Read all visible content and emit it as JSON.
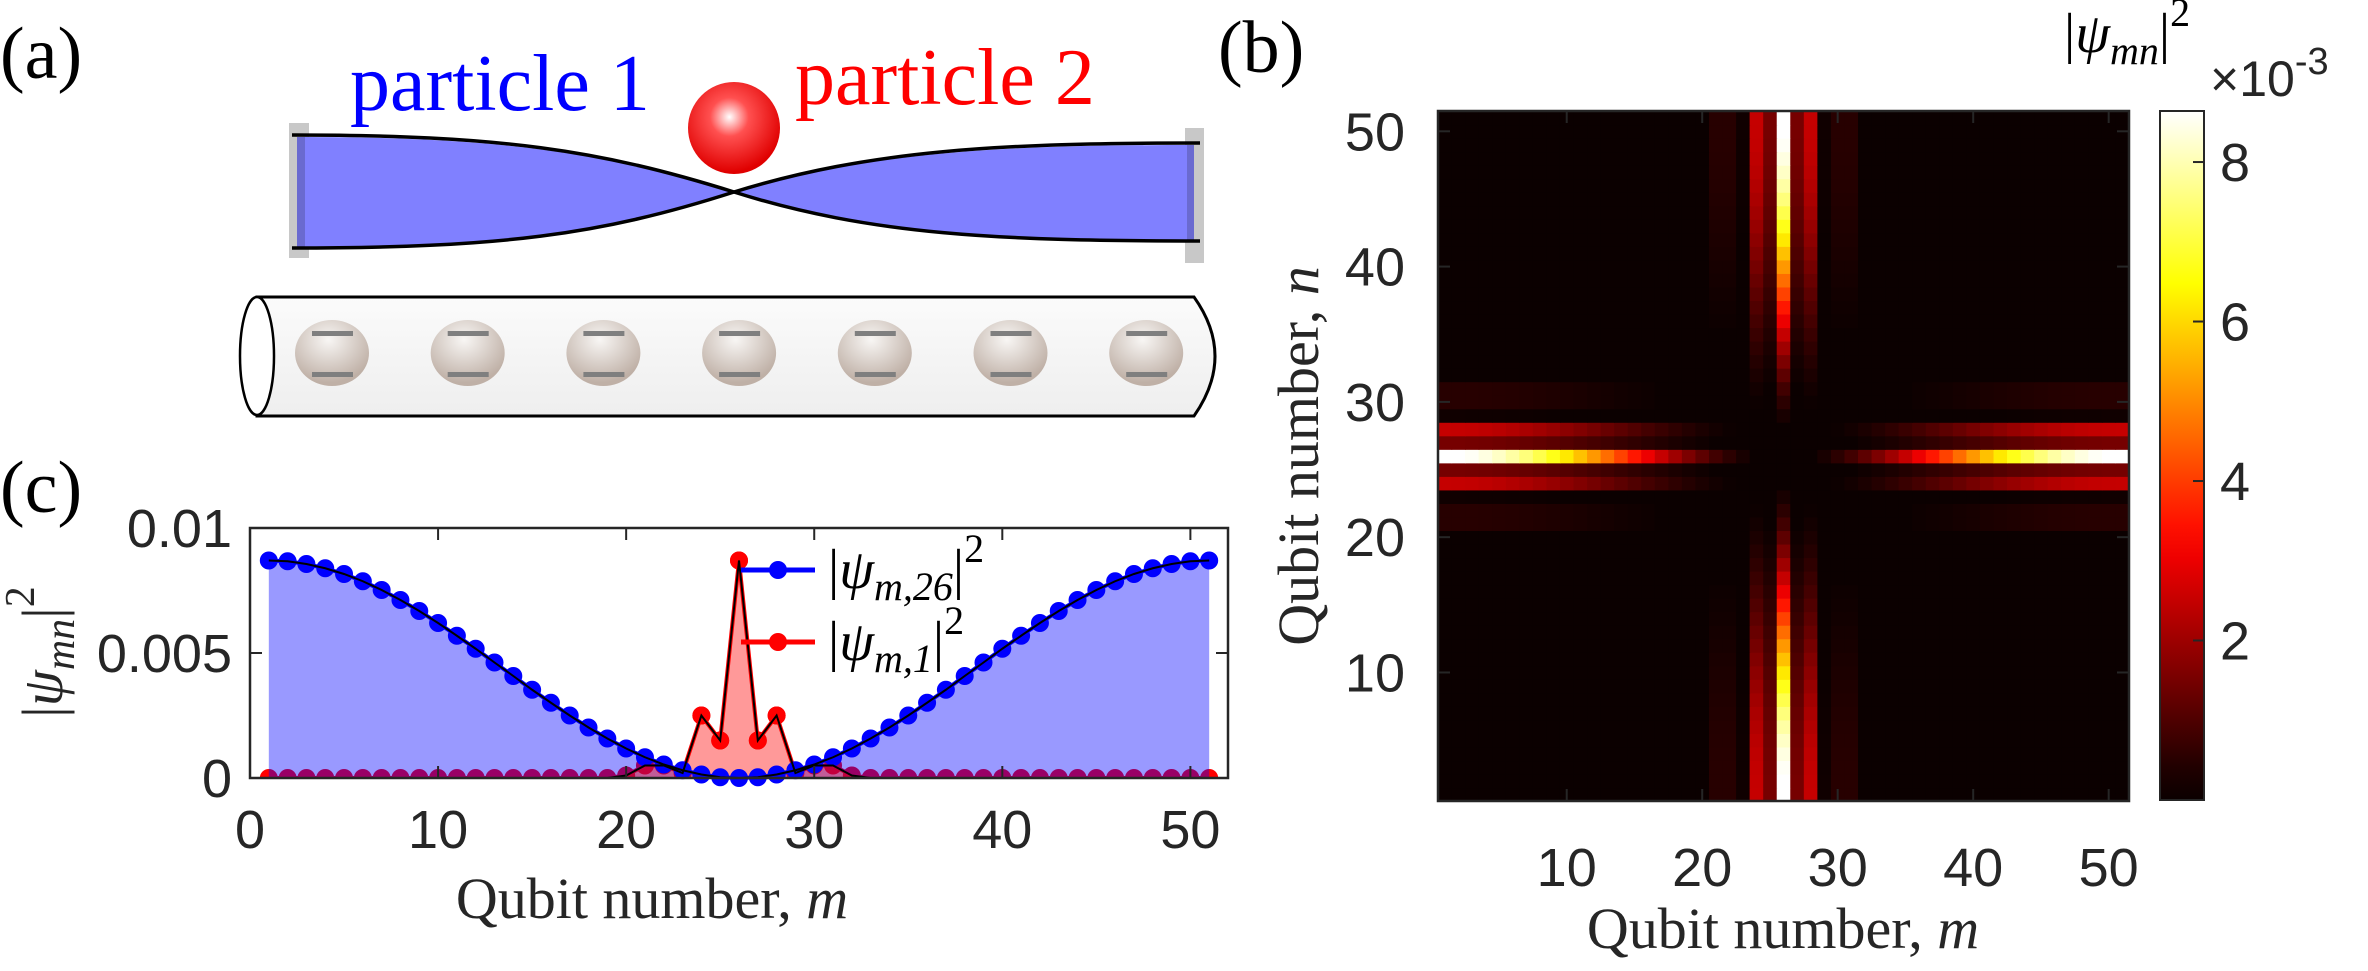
{
  "panels": {
    "a": {
      "label": "(a)",
      "particle1": "particle 1",
      "particle2": "particle 2",
      "particle1_color": "#0000ff",
      "particle2_color": "#ff0000",
      "membrane_color": "#8080ff",
      "qubit_count": 7
    },
    "b": {
      "label": "(b)"
    },
    "c": {
      "label": "(c)"
    }
  },
  "chart_data": [
    {
      "panel": "c",
      "type": "line",
      "x": [
        1,
        2,
        3,
        4,
        5,
        6,
        7,
        8,
        9,
        10,
        11,
        12,
        13,
        14,
        15,
        16,
        17,
        18,
        19,
        20,
        21,
        22,
        23,
        24,
        25,
        26,
        27,
        28,
        29,
        30,
        31,
        32,
        33,
        34,
        35,
        36,
        37,
        38,
        39,
        40,
        41,
        42,
        43,
        44,
        45,
        46,
        47,
        48,
        49,
        50,
        51
      ],
      "series": [
        {
          "color": "#0000ff",
          "fill": "#9999ff",
          "values": [
            0.0087,
            0.00867,
            0.00856,
            0.00839,
            0.00816,
            0.00787,
            0.00752,
            0.00712,
            0.00668,
            0.0062,
            0.00569,
            0.00517,
            0.00462,
            0.00408,
            0.00353,
            0.00301,
            0.0025,
            0.00202,
            0.00158,
            0.00118,
            0.00083,
            0.00054,
            0.00031,
            0.00014,
            3e-05,
            0,
            3e-05,
            0.00014,
            0.00031,
            0.00054,
            0.00083,
            0.00118,
            0.00158,
            0.00202,
            0.0025,
            0.00301,
            0.00353,
            0.00408,
            0.00462,
            0.00517,
            0.00569,
            0.0062,
            0.00668,
            0.00712,
            0.00752,
            0.00787,
            0.00816,
            0.00839,
            0.00856,
            0.00867,
            0.0087
          ]
        },
        {
          "color": "#ff0000",
          "fill": "#ff9999",
          "values": [
            0,
            0,
            0,
            0,
            0,
            0,
            0,
            0,
            0,
            0,
            0,
            0,
            0,
            0,
            0,
            0,
            0,
            0,
            0,
            0.0001,
            0.0005,
            0.0005,
            0.0002,
            0.0025,
            0.0015,
            0.0087,
            0.0015,
            0.0025,
            0.0002,
            0.0005,
            0.0005,
            0.0001,
            0,
            0,
            0,
            0,
            0,
            0,
            0,
            0,
            0,
            0,
            0,
            0,
            0,
            0,
            0,
            0,
            0,
            0,
            0
          ]
        }
      ],
      "legend": [
        {
          "open": "|",
          "sym": "ψ",
          "sub": "m,26",
          "close": "|",
          "sup": "2"
        },
        {
          "open": "|",
          "sym": "ψ",
          "sub": "m,1",
          "close": "|",
          "sup": "2"
        }
      ],
      "legend_placement": "top-center",
      "xlabel": {
        "text": "Qubit number, ",
        "var": "m"
      },
      "ylabel": {
        "open": "|",
        "sym": "ψ",
        "sub": "mn",
        "close": "|",
        "sup": "2"
      },
      "xlim": [
        0,
        52
      ],
      "ylim": [
        0,
        0.01
      ],
      "xticks": [
        "0",
        "10",
        "20",
        "30",
        "40",
        "50"
      ],
      "yticks": [
        "0",
        "0.005",
        "0.01"
      ],
      "grid": false
    },
    {
      "panel": "b",
      "type": "heatmap",
      "x_range": [
        1,
        51
      ],
      "y_range": [
        1,
        51
      ],
      "row_slices": {
        "n=1": "series 1 of panel c",
        "n=26": "series 0 of panel c"
      },
      "xlabel": {
        "text": "Qubit number, ",
        "var": "m"
      },
      "ylabel": {
        "text": "Qubit number, ",
        "var": "n"
      },
      "xticks": [
        "10",
        "20",
        "30",
        "40",
        "50"
      ],
      "yticks": [
        "10",
        "20",
        "30",
        "40",
        "50"
      ],
      "colormap": "hot",
      "clim": [
        0,
        8.64
      ],
      "colorbar": {
        "title": {
          "open": "|",
          "sym": "ψ",
          "sub": "mn",
          "close": "|",
          "sup": "2"
        },
        "multiplier": "×10",
        "exponent": "-3",
        "ticks": [
          "2",
          "4",
          "6",
          "8"
        ]
      },
      "grid": false
    }
  ]
}
